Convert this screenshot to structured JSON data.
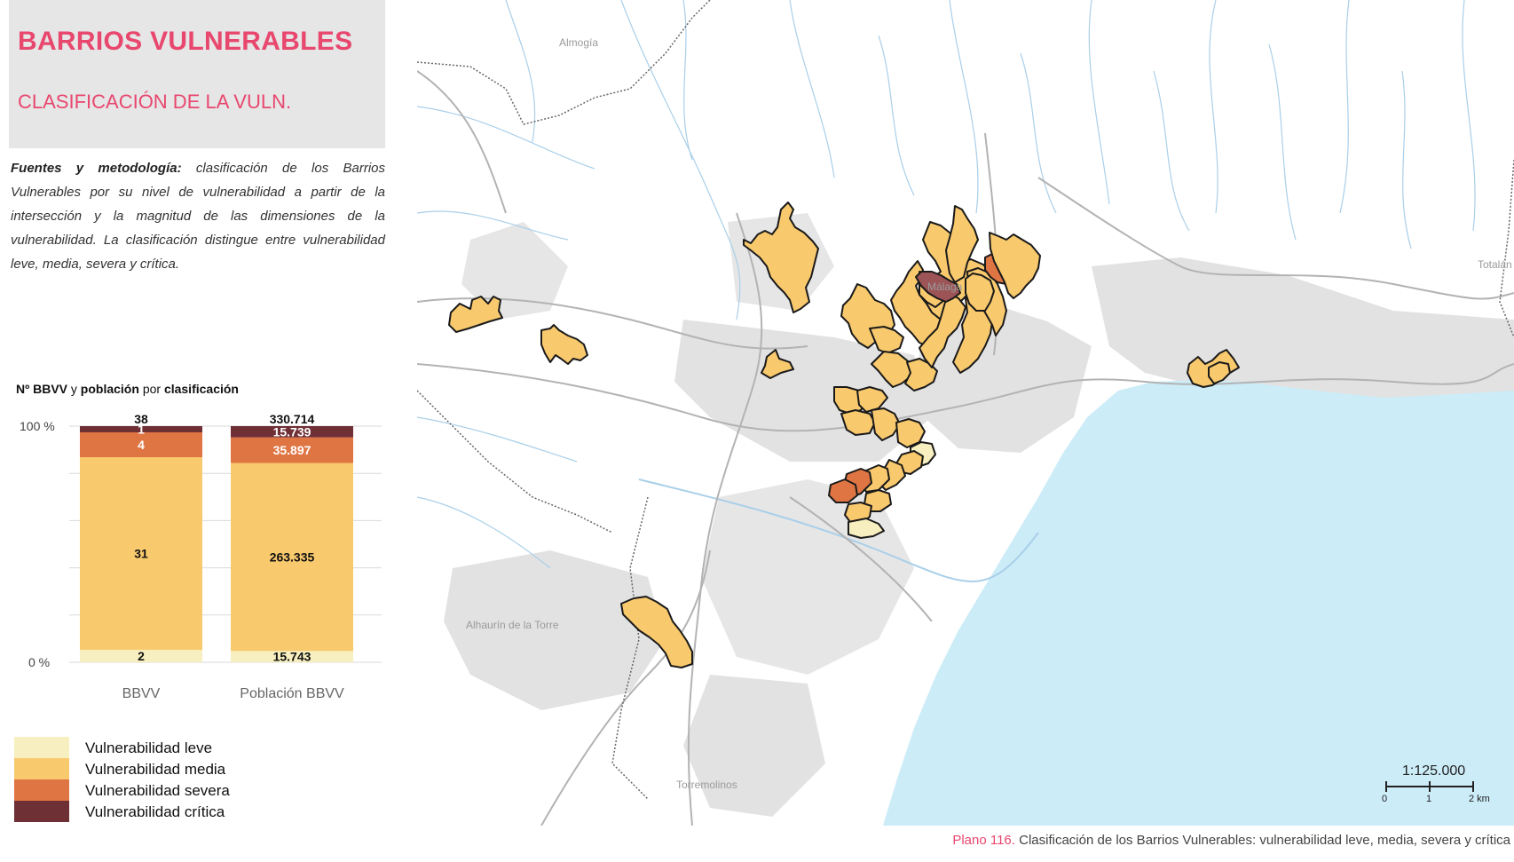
{
  "header": {
    "title": "BARRIOS VULNERABLES",
    "subtitle": "CLASIFICACIÓN DE LA VULN."
  },
  "methodology": {
    "label": "Fuentes y metodología:",
    "text": "clasificación de los Barrios Vulnerables por su nivel de vulnerabilidad a partir de la intersección y la magnitud de las dimensiones de la vulnerabilidad. La clasificación distingue entre vulnerabilidad leve, media, severa y crítica."
  },
  "chart_heading": {
    "part1": "Nº BBVV",
    "part2": "y",
    "part3": "población",
    "part4": "por",
    "part5": "clasificación"
  },
  "chart_data": {
    "type": "bar",
    "stacked": true,
    "normalized": true,
    "categories": [
      "BBVV",
      "Población BBVV"
    ],
    "ytick_labels": [
      "100 %",
      "0 %"
    ],
    "ylim": [
      0,
      100
    ],
    "series": [
      {
        "name": "Vulnerabilidad leve",
        "values": [
          2,
          15743
        ],
        "labels": [
          "2",
          "15.743"
        ],
        "color": "#f7efbf"
      },
      {
        "name": "Vulnerabilidad media",
        "values": [
          31,
          263335
        ],
        "labels": [
          "31",
          "263.335"
        ],
        "color": "#f9c96e"
      },
      {
        "name": "Vulnerabilidad severa",
        "values": [
          4,
          35897
        ],
        "labels": [
          "4",
          "35.897"
        ],
        "color": "#e07544"
      },
      {
        "name": "Vulnerabilidad crítica",
        "values": [
          1,
          15739
        ],
        "labels": [
          "1",
          "15.739"
        ],
        "color": "#6e2f35"
      }
    ],
    "totals": [
      "38",
      "330.714"
    ],
    "legend": "bottom-left"
  },
  "map": {
    "place_labels": [
      "Almogía",
      "Málaga",
      "Totalán",
      "Alhaurín de la Torre",
      "Torremolinos"
    ],
    "scale_ratio": "1:125.000",
    "scale_ticks": [
      "0",
      "1",
      "2 km"
    ],
    "colors": {
      "sea": "#ccecf8",
      "urban": "#e2e2e2",
      "rivers": "#a9cfe9",
      "roads": "#b3b3b3",
      "leve": "#f7efbf",
      "media": "#f9c96e",
      "severa": "#e07544",
      "critica": "#9c5456"
    }
  },
  "caption": {
    "number": "Plano 116.",
    "text": "Clasificación de los Barrios Vulnerables: vulnerabilidad leve, media, severa y crítica"
  }
}
